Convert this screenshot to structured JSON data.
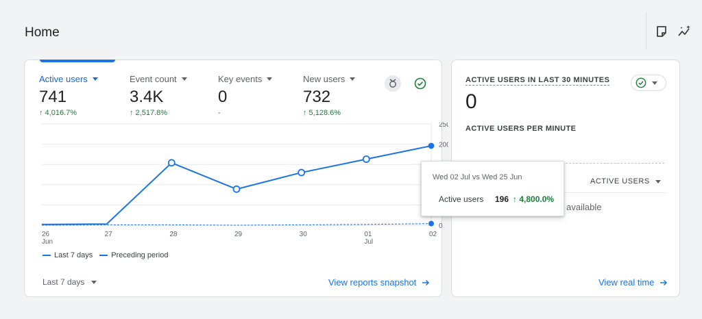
{
  "page": {
    "title": "Home"
  },
  "toolbar": {
    "icons": [
      "note-icon",
      "insights-icon"
    ]
  },
  "summary_card": {
    "metrics": [
      {
        "name": "Active users",
        "value": "741",
        "change": "↑ 4,016.7%",
        "active": true
      },
      {
        "name": "Event count",
        "value": "3.4K",
        "change": "↑ 2,517.8%"
      },
      {
        "name": "Key events",
        "value": "0",
        "change": "-"
      },
      {
        "name": "New users",
        "value": "732",
        "change": "↑ 5,128.6%"
      }
    ],
    "legend": {
      "current": "Last 7 days",
      "previous": "Preceding period"
    },
    "date_range": "Last 7 days",
    "link": "View reports snapshot"
  },
  "chart_data": {
    "type": "line",
    "categories": [
      "26 Jun",
      "27",
      "28",
      "29",
      "30",
      "01 Jul",
      "02"
    ],
    "x_tick_labels": [
      {
        "day": "26",
        "month": "Jun"
      },
      {
        "day": "27",
        "month": ""
      },
      {
        "day": "28",
        "month": ""
      },
      {
        "day": "29",
        "month": ""
      },
      {
        "day": "30",
        "month": ""
      },
      {
        "day": "01",
        "month": "Jul"
      },
      {
        "day": "02",
        "month": ""
      }
    ],
    "y_ticks": [
      "0",
      "50",
      "100",
      "150",
      "200",
      "250"
    ],
    "ylim": [
      0,
      250
    ],
    "series": [
      {
        "name": "Last 7 days",
        "values": [
          2,
          3,
          154,
          89,
          130,
          163,
          196
        ]
      },
      {
        "name": "Preceding period",
        "values": [
          0,
          1,
          1,
          0,
          1,
          2,
          4
        ]
      }
    ],
    "legend_position": "bottom-left",
    "grid": true
  },
  "tooltip": {
    "title": "Wed 02 Jul vs Wed 25 Jun",
    "metric": "Active users",
    "value": "196",
    "change": "↑ 4,800.0%"
  },
  "realtime_card": {
    "title": "ACTIVE USERS IN LAST 30 MINUTES",
    "value": "0",
    "subtitle": "ACTIVE USERS PER MINUTE",
    "column_header": "ACTIVE USERS",
    "empty_text": "No data available",
    "link": "View real time"
  },
  "colors": {
    "accent": "#1a73e8",
    "positive": "#188038"
  }
}
